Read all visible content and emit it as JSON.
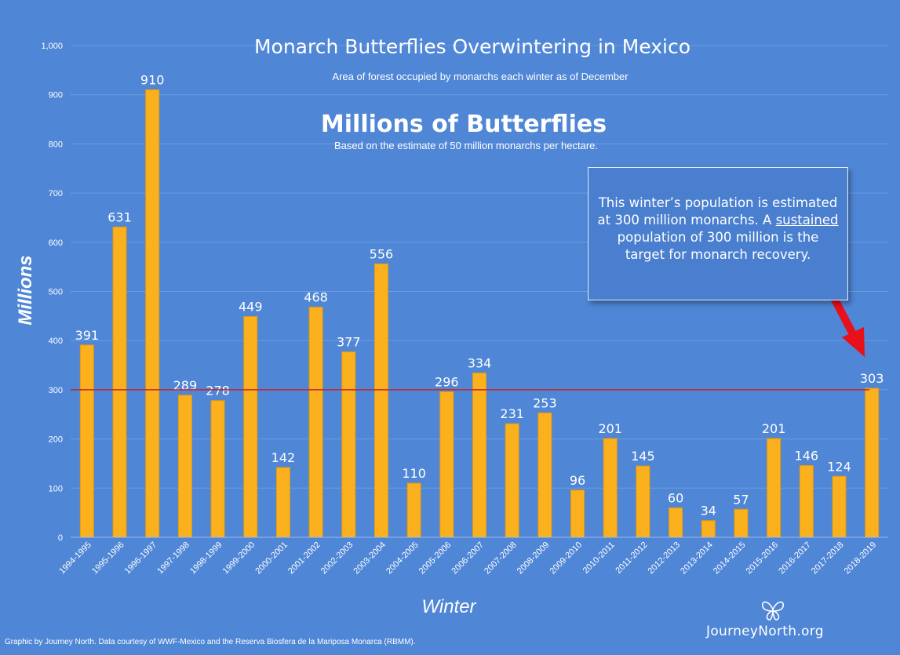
{
  "chart_data": {
    "type": "bar",
    "title": "Monarch Butterflies Overwintering in Mexico",
    "subtitle": "Area of forest occupied by monarchs each winter as of December",
    "heading": "Millions of Butterflies",
    "subheading": "Based on the estimate of 50 million monarchs per hectare.",
    "xlabel": "Winter",
    "ylabel": "Millions",
    "ylim": [
      0,
      1000
    ],
    "yticks": [
      0,
      100,
      200,
      300,
      400,
      500,
      600,
      700,
      800,
      900,
      1000
    ],
    "ytick_labels": [
      "0",
      "100",
      "200",
      "300",
      "400",
      "500",
      "600",
      "700",
      "800",
      "900",
      "1,000"
    ],
    "categories": [
      "1994-1995",
      "1995-1996",
      "1996-1997",
      "1997-1998",
      "1998-1999",
      "1999-2000",
      "2000-2001",
      "2001-2002",
      "2002-2003",
      "2003-2004",
      "2004-2005",
      "2005-2006",
      "2006-2007",
      "2007-2008",
      "2008-2009",
      "2009-2010",
      "2010-2011",
      "2011-2012",
      "2012-2013",
      "2013-2014",
      "2014-2015",
      "2015-2016",
      "2016-2017",
      "2017-2018",
      "2018-2019"
    ],
    "values": [
      391,
      631,
      910,
      289,
      278,
      449,
      142,
      468,
      377,
      556,
      110,
      296,
      334,
      231,
      253,
      96,
      201,
      145,
      60,
      34,
      57,
      201,
      146,
      124,
      303
    ],
    "target_line": 300,
    "grid": true,
    "colors": {
      "bar": "#fbb01e",
      "bar_edge": "#e59a0c",
      "background": "#4f86d6",
      "grid": "#6d9ce0",
      "target_line": "#c0282d",
      "arrow": "#e8101a"
    }
  },
  "callout": {
    "line1": "This winter’s population is estimated",
    "line2": "at 300 million monarchs. A ",
    "line2_underlined": "sustained",
    "line3": "population of 300 million is the",
    "line4": "target for monarch recovery."
  },
  "footer": "Graphic by Journey North. Data courtesy of WWF-Mexico and the Reserva Biosfera de la Mariposa Monarca (RBMM).",
  "logo": {
    "text": "JourneyNorth.org",
    "icon": "butterfly-icon"
  }
}
